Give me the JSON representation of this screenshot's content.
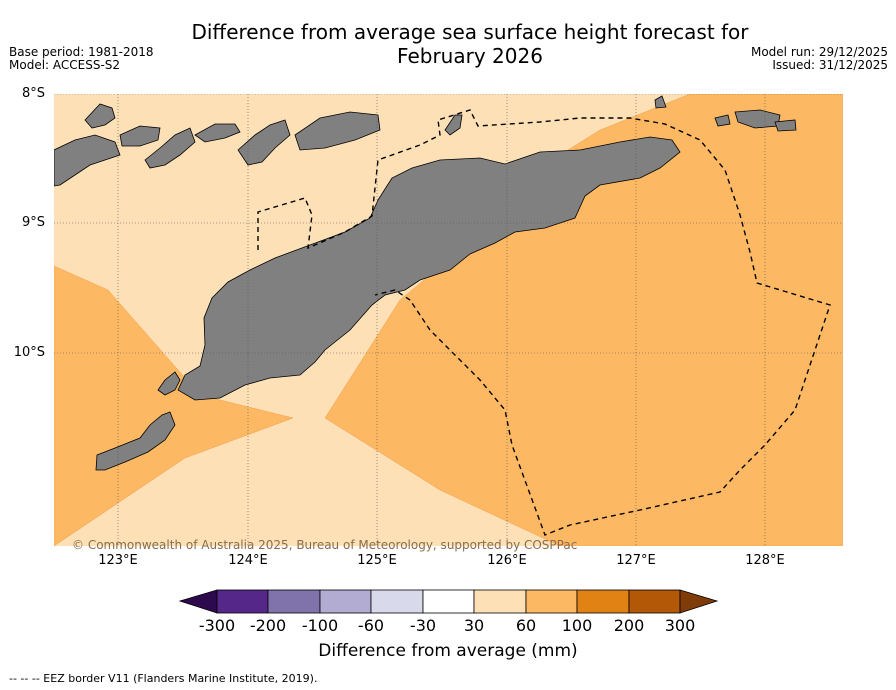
{
  "title_line1": "Difference from average sea surface height forecast for",
  "title_line2": "February 2026",
  "base_period": "Base period: 1981-2018",
  "model": "Model: ACCESS-S2",
  "model_run": "Model run: 29/12/2025",
  "issued": "Issued: 31/12/2025",
  "lat_labels": [
    "8°S",
    "9°S",
    "10°S"
  ],
  "lon_labels": [
    "123°E",
    "124°E",
    "125°E",
    "126°E",
    "127°E",
    "128°E"
  ],
  "copyright": "© Commonwealth of Australia 2025, Bureau of Meteorology, supported by COSPPac",
  "colorbar": {
    "title": "Difference from average (mm)",
    "ticks": [
      "-300",
      "-200",
      "-100",
      "-60",
      "-30",
      "30",
      "60",
      "100",
      "200",
      "300"
    ],
    "colors": {
      "below_min": "#2d0a4e",
      "neg300_200": "#542788",
      "neg200_100": "#8073ac",
      "neg100_60": "#b2abd2",
      "neg60_30": "#d8daeb",
      "neg30_30": "#ffffff",
      "pos30_60": "#fee0b6",
      "pos60_100": "#fdb863",
      "pos100_200": "#e08214",
      "pos200_300": "#b35806",
      "above_max": "#7f3b08"
    }
  },
  "map_colors": {
    "land": "#808080",
    "band_30_60": "#fee0b6",
    "band_60_100": "#fdb863"
  },
  "footnote": "--  --  -- EEZ border V11 (Flanders Marine Institute, 2019)."
}
